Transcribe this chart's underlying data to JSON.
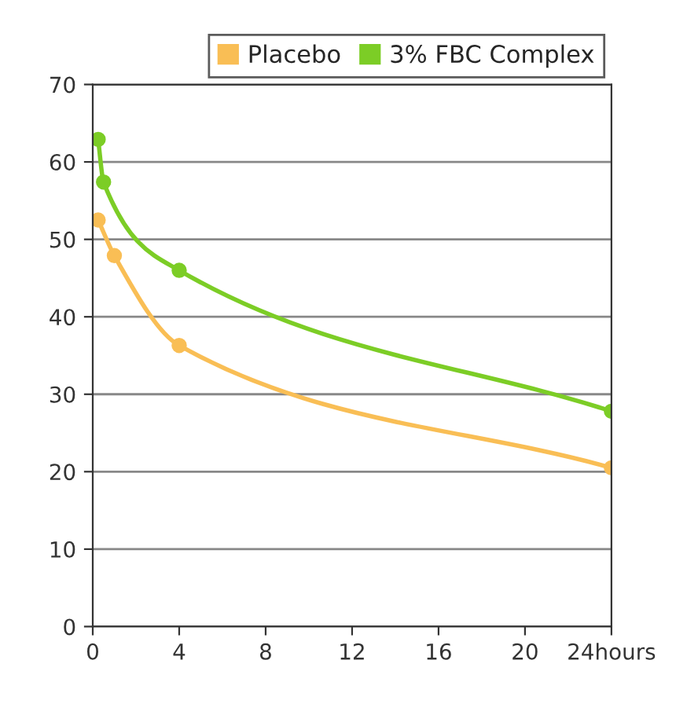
{
  "chart_data": {
    "type": "line",
    "x": [
      0.25,
      1,
      4,
      24
    ],
    "series": [
      {
        "name": "Placebo",
        "color": "#f9be55",
        "values": [
          52.5,
          47.9,
          36.3,
          20.5
        ]
      },
      {
        "name": "3% FBC Complex",
        "color": "#7ccd26",
        "x": [
          0.25,
          0.5,
          4,
          24
        ],
        "values": [
          62.9,
          57.4,
          46,
          27.8
        ]
      }
    ],
    "xlim": [
      0,
      24
    ],
    "ylim": [
      0,
      70
    ],
    "xticks": [
      0,
      4,
      8,
      12,
      16,
      20,
      {
        "value": 24,
        "label": "24hours"
      }
    ],
    "yticks": [
      0,
      10,
      20,
      30,
      40,
      50,
      60,
      70
    ],
    "grid": "y",
    "legend": "top right",
    "marker": "circle",
    "line_style": "solid"
  }
}
